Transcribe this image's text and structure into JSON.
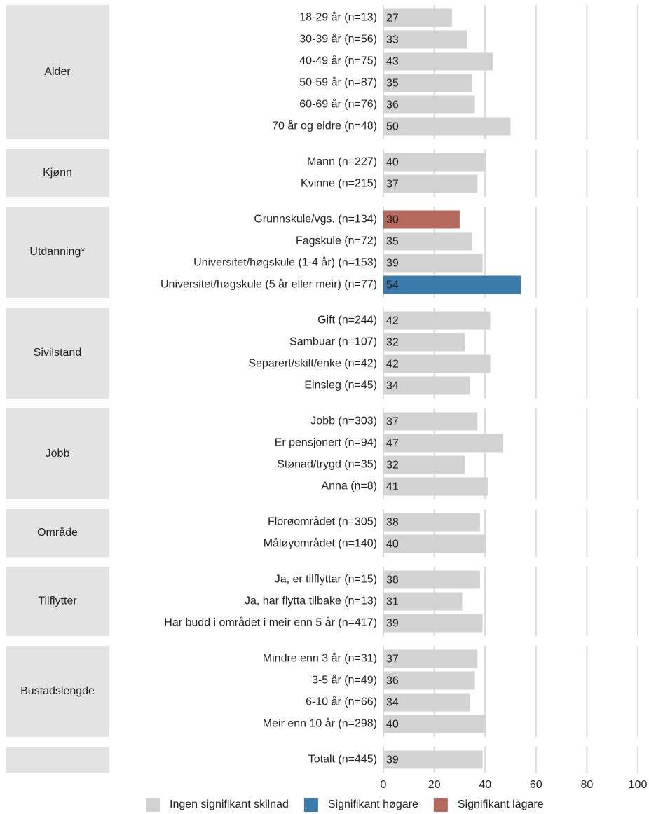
{
  "chart_data": {
    "type": "bar",
    "legend": [
      {
        "name": "Ingen signifikant skilnad",
        "color": "#d3d3d3"
      },
      {
        "name": "Signifikant høgare",
        "color": "#3a7bab"
      },
      {
        "name": "Signifikant lågare",
        "color": "#b5695c"
      }
    ],
    "groups": [
      {
        "name": "Alder",
        "categories": [
          "18-29 år (n=13)",
          "30-39 år (n=56)",
          "40-49 år (n=75)",
          "50-59 år (n=87)",
          "60-69 år (n=76)",
          "70 år og eldre (n=48)"
        ],
        "values": [
          27,
          33,
          43,
          35,
          36,
          50
        ],
        "significance": [
          0,
          0,
          0,
          0,
          0,
          0
        ]
      },
      {
        "name": "Kjønn",
        "categories": [
          "Mann (n=227)",
          "Kvinne (n=215)"
        ],
        "values": [
          40,
          37
        ],
        "significance": [
          0,
          0
        ]
      },
      {
        "name": "Utdanning*",
        "categories": [
          "Grunnskule/vgs. (n=134)",
          "Fagskule (n=72)",
          "Universitet/høgskule (1-4 år) (n=153)",
          "Universitet/høgskule (5 år eller meir) (n=77)"
        ],
        "values": [
          30,
          35,
          39,
          54
        ],
        "significance": [
          2,
          0,
          0,
          1
        ]
      },
      {
        "name": "Sivilstand",
        "categories": [
          "Gift (n=244)",
          "Sambuar (n=107)",
          "Separert/skilt/enke (n=42)",
          "Einsleg (n=45)"
        ],
        "values": [
          42,
          32,
          42,
          34
        ],
        "significance": [
          0,
          0,
          0,
          0
        ]
      },
      {
        "name": "Jobb",
        "categories": [
          "Jobb (n=303)",
          "Er pensjonert (n=94)",
          "Stønad/trygd (n=35)",
          "Anna (n=8)"
        ],
        "values": [
          37,
          47,
          32,
          41
        ],
        "significance": [
          0,
          0,
          0,
          0
        ]
      },
      {
        "name": "Område",
        "categories": [
          "Florøområdet (n=305)",
          "Måløyområdet (n=140)"
        ],
        "values": [
          38,
          40
        ],
        "significance": [
          0,
          0
        ]
      },
      {
        "name": "Tilflytter",
        "categories": [
          "Ja, er tilflyttar (n=15)",
          "Ja, har flytta tilbake (n=13)",
          "Har budd i området i meir enn 5 år (n=417)"
        ],
        "values": [
          38,
          31,
          39
        ],
        "significance": [
          0,
          0,
          0
        ]
      },
      {
        "name": "Bustadslengde",
        "categories": [
          "Mindre enn 3 år (n=31)",
          "3-5 år (n=49)",
          "6-10 år (n=66)",
          "Meir enn 10 år (n=298)"
        ],
        "values": [
          37,
          36,
          34,
          40
        ],
        "significance": [
          0,
          0,
          0,
          0
        ]
      },
      {
        "name": null,
        "categories": [
          "Totalt (n=445)"
        ],
        "values": [
          39
        ],
        "significance": [
          0
        ]
      }
    ],
    "xlim": [
      0,
      100
    ],
    "xticks": [
      0,
      20,
      40,
      60,
      80,
      100
    ],
    "grid": true
  }
}
